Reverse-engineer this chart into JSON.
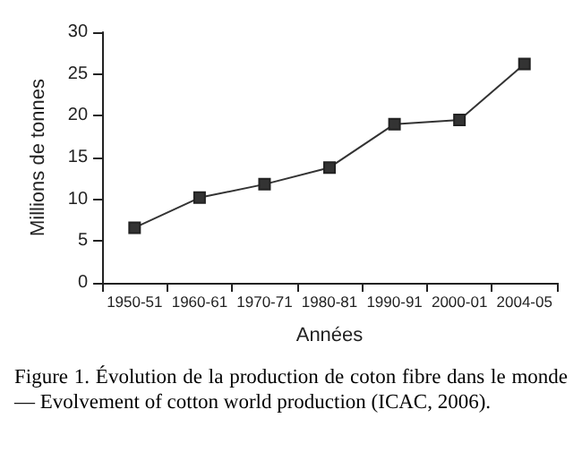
{
  "chart_data": {
    "type": "line",
    "xlabel": "Années",
    "ylabel": "Millions de tonnes",
    "categories": [
      "1950-51",
      "1960-61",
      "1970-71",
      "1980-81",
      "1990-91",
      "2000-01",
      "2004-05"
    ],
    "series": [
      {
        "color": "#333333",
        "values": [
          6.6,
          10.2,
          11.8,
          13.8,
          19.0,
          19.5,
          26.2
        ]
      }
    ],
    "ylim": [
      0,
      30
    ],
    "yticks": [
      0,
      5,
      10,
      15,
      20,
      25,
      30
    ],
    "marker": "square",
    "line_style": "solid",
    "annotations": [
      "Figure 1. Évolution de la production de coton fibre dans le monde — Evolvement of cotton world production (ICAC, 2006)."
    ]
  }
}
